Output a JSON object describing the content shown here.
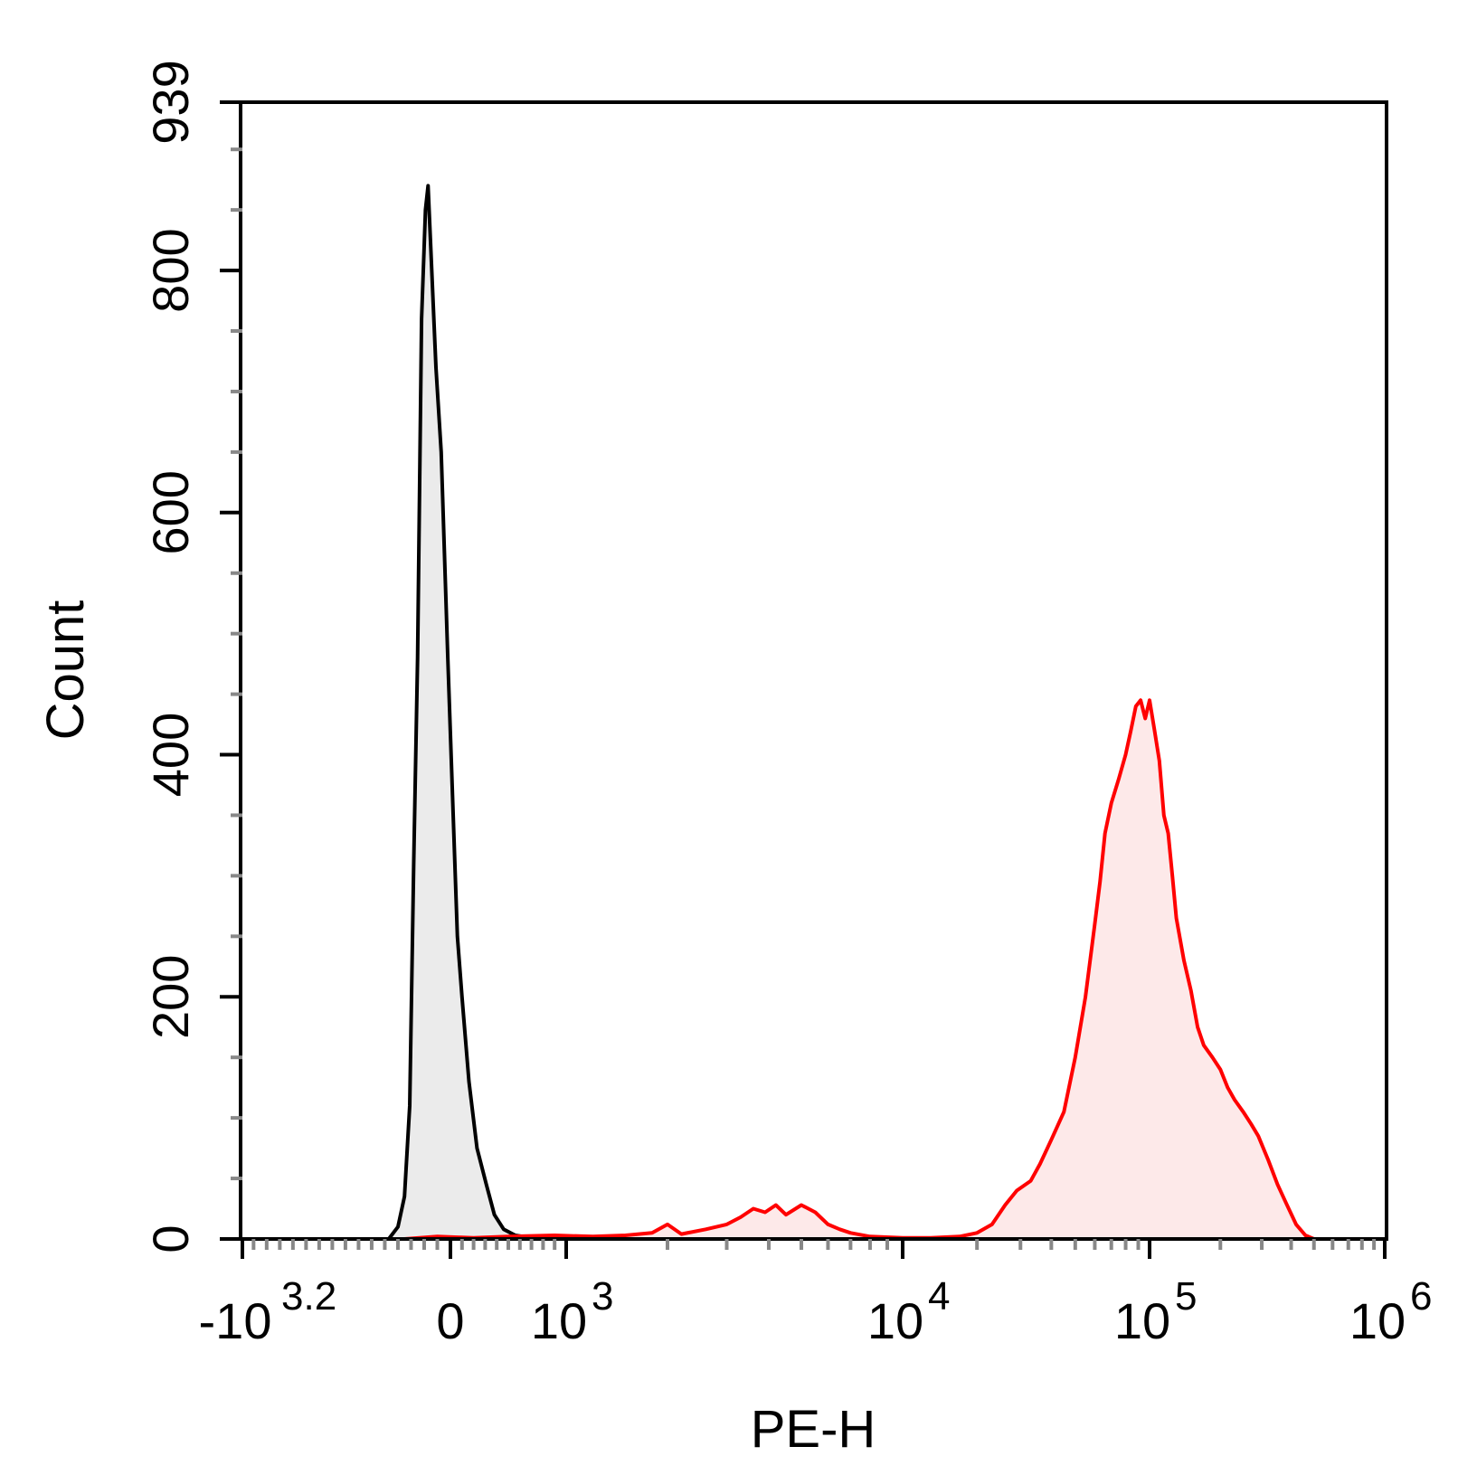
{
  "chart_data": {
    "type": "area",
    "title": "",
    "xlabel": "PE-H",
    "ylabel": "Count",
    "xscale": "biexponential",
    "xlim": [
      -1585,
      1000000
    ],
    "ylim": [
      0,
      939
    ],
    "grid": false,
    "legend": "none",
    "y_ticks": [
      {
        "value": 0,
        "label": "0"
      },
      {
        "value": 200,
        "label": "200"
      },
      {
        "value": 400,
        "label": "400"
      },
      {
        "value": 600,
        "label": "600"
      },
      {
        "value": 800,
        "label": "800"
      },
      {
        "value": 939,
        "label": "939"
      }
    ],
    "x_ticks": [
      {
        "value": -1585,
        "base": "-10",
        "exp": "3.2"
      },
      {
        "value": 0,
        "base": "0",
        "exp": ""
      },
      {
        "value": 1000,
        "base": "10",
        "exp": "3"
      },
      {
        "value": 10000,
        "base": "10",
        "exp": "4"
      },
      {
        "value": 100000,
        "base": "10",
        "exp": "5"
      },
      {
        "value": 1000000,
        "base": "10",
        "exp": "6"
      }
    ],
    "series": [
      {
        "color": "#000000",
        "fill": "#ebebeb",
        "points": [
          [
            -470,
            0
          ],
          [
            -400,
            10
          ],
          [
            -350,
            35
          ],
          [
            -310,
            110
          ],
          [
            -280,
            310
          ],
          [
            -250,
            480
          ],
          [
            -220,
            760
          ],
          [
            -190,
            850
          ],
          [
            -170,
            870
          ],
          [
            -150,
            820
          ],
          [
            -110,
            720
          ],
          [
            -70,
            650
          ],
          [
            -20,
            480
          ],
          [
            20,
            360
          ],
          [
            60,
            250
          ],
          [
            100,
            200
          ],
          [
            160,
            130
          ],
          [
            230,
            75
          ],
          [
            310,
            45
          ],
          [
            380,
            20
          ],
          [
            460,
            8
          ],
          [
            560,
            3
          ],
          [
            700,
            1
          ],
          [
            850,
            0
          ]
        ]
      },
      {
        "color": "#ff0000",
        "fill": "#fde9e9",
        "points": [
          [
            -350,
            0
          ],
          [
            -100,
            2
          ],
          [
            200,
            1
          ],
          [
            500,
            2
          ],
          [
            900,
            3
          ],
          [
            1200,
            2
          ],
          [
            1500,
            3
          ],
          [
            1800,
            5
          ],
          [
            2000,
            12
          ],
          [
            2200,
            4
          ],
          [
            2600,
            8
          ],
          [
            3000,
            12
          ],
          [
            3300,
            18
          ],
          [
            3600,
            25
          ],
          [
            3900,
            22
          ],
          [
            4200,
            28
          ],
          [
            4500,
            20
          ],
          [
            5000,
            28
          ],
          [
            5500,
            22
          ],
          [
            6000,
            12
          ],
          [
            6500,
            8
          ],
          [
            7000,
            5
          ],
          [
            8000,
            2
          ],
          [
            10000,
            1
          ],
          [
            13000,
            1
          ],
          [
            17000,
            2
          ],
          [
            20000,
            5
          ],
          [
            23000,
            12
          ],
          [
            26000,
            28
          ],
          [
            29000,
            40
          ],
          [
            33000,
            48
          ],
          [
            36000,
            62
          ],
          [
            40000,
            82
          ],
          [
            45000,
            105
          ],
          [
            50000,
            150
          ],
          [
            55000,
            200
          ],
          [
            60000,
            260
          ],
          [
            63000,
            295
          ],
          [
            66000,
            335
          ],
          [
            70000,
            360
          ],
          [
            75000,
            380
          ],
          [
            80000,
            400
          ],
          [
            84000,
            420
          ],
          [
            88000,
            440
          ],
          [
            92000,
            445
          ],
          [
            96000,
            430
          ],
          [
            100000,
            445
          ],
          [
            105000,
            420
          ],
          [
            110000,
            395
          ],
          [
            115000,
            350
          ],
          [
            120000,
            335
          ],
          [
            125000,
            300
          ],
          [
            130000,
            265
          ],
          [
            140000,
            230
          ],
          [
            150000,
            205
          ],
          [
            160000,
            175
          ],
          [
            170000,
            160
          ],
          [
            185000,
            150
          ],
          [
            200000,
            140
          ],
          [
            215000,
            125
          ],
          [
            230000,
            115
          ],
          [
            250000,
            105
          ],
          [
            270000,
            95
          ],
          [
            290000,
            85
          ],
          [
            320000,
            65
          ],
          [
            350000,
            45
          ],
          [
            380000,
            30
          ],
          [
            420000,
            12
          ],
          [
            460000,
            3
          ],
          [
            500000,
            0
          ]
        ]
      }
    ]
  }
}
